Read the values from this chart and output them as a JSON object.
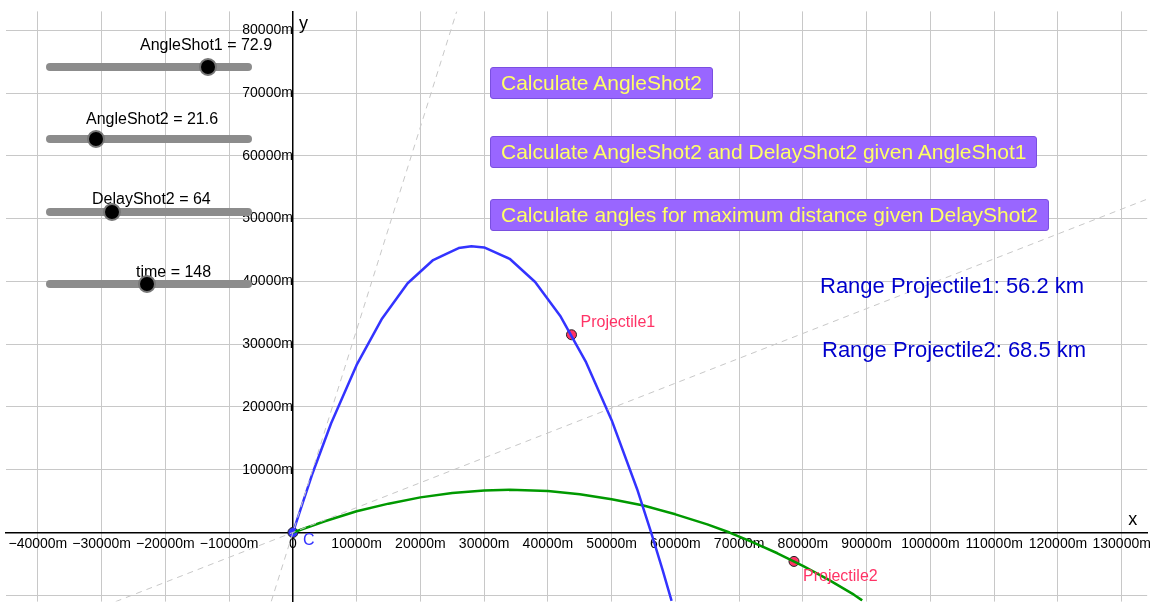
{
  "chart_data": {
    "type": "line",
    "xlabel": "x",
    "ylabel": "y",
    "xlim": [
      -45000,
      134000
    ],
    "ylim": [
      -11000,
      83000
    ],
    "xticks": [
      {
        "value": -40000,
        "label": "−40000m"
      },
      {
        "value": -30000,
        "label": "−30000m"
      },
      {
        "value": -20000,
        "label": "−20000m"
      },
      {
        "value": -10000,
        "label": "−10000m"
      },
      {
        "value": 0,
        "label": "0"
      },
      {
        "value": 10000,
        "label": "10000m"
      },
      {
        "value": 20000,
        "label": "20000m"
      },
      {
        "value": 30000,
        "label": "30000m"
      },
      {
        "value": 40000,
        "label": "40000m"
      },
      {
        "value": 50000,
        "label": "50000m"
      },
      {
        "value": 60000,
        "label": "60000m"
      },
      {
        "value": 70000,
        "label": "70000m"
      },
      {
        "value": 80000,
        "label": "80000m"
      },
      {
        "value": 90000,
        "label": "90000m"
      },
      {
        "value": 100000,
        "label": "100000m"
      },
      {
        "value": 110000,
        "label": "110000m"
      },
      {
        "value": 120000,
        "label": "120000m"
      },
      {
        "value": 130000,
        "label": "130000m"
      }
    ],
    "yticks": [
      {
        "value": -10000,
        "label": null
      },
      {
        "value": 0,
        "label": null
      },
      {
        "value": 10000,
        "label": "10000m"
      },
      {
        "value": 20000,
        "label": "20000m"
      },
      {
        "value": 30000,
        "label": "30000m"
      },
      {
        "value": 40000,
        "label": "40000m"
      },
      {
        "value": 50000,
        "label": "50000m"
      },
      {
        "value": 60000,
        "label": "60000m"
      },
      {
        "value": 70000,
        "label": "70000m"
      },
      {
        "value": 80000,
        "label": "80000m"
      }
    ],
    "grid": true,
    "legend": false,
    "marker": "none",
    "series": [
      {
        "type": "line",
        "color": "#c8c8c8",
        "line_style": "dashed",
        "x": [
          -3400,
          25700
        ],
        "values": [
          -11000,
          83000
        ]
      },
      {
        "type": "line",
        "color": "#c8c8c8",
        "line_style": "dashed",
        "x": [
          -27800,
          134000
        ],
        "values": [
          -11000,
          53100
        ]
      },
      {
        "type": "line",
        "color": "#3333ff",
        "x": [
          0,
          3000,
          6000,
          10000,
          14000,
          18000,
          22000,
          26000,
          28000,
          30000,
          34000,
          38000,
          42000,
          46000,
          50000,
          54000,
          56200,
          58000,
          59400
        ],
        "values": [
          0,
          9200,
          17400,
          26700,
          34100,
          39700,
          43400,
          45300,
          45600,
          45400,
          43600,
          39900,
          34400,
          27100,
          17900,
          6900,
          0,
          -6000,
          -10900
        ]
      },
      {
        "type": "line",
        "color": "#009900",
        "x": [
          0,
          5000,
          10000,
          15000,
          20000,
          25000,
          30000,
          34000,
          40000,
          45000,
          50000,
          55000,
          60000,
          65000,
          68500,
          72000,
          76000,
          80000,
          84000,
          88000,
          89300
        ],
        "values": [
          0,
          1800,
          3400,
          4600,
          5600,
          6300,
          6700,
          6800,
          6600,
          6100,
          5300,
          4300,
          2900,
          1300,
          0,
          -1500,
          -3300,
          -5300,
          -7500,
          -9900,
          -10800
        ]
      },
      {
        "type": "scatter",
        "name": "C",
        "color": "#3333ff",
        "marker": "circle",
        "x": [
          0
        ],
        "values": [
          0
        ]
      },
      {
        "type": "scatter",
        "name": "Projectile1",
        "color": "#ff3366",
        "marker": "circle",
        "x": [
          43700
        ],
        "values": [
          31500
        ]
      },
      {
        "type": "scatter",
        "name": "Projectile2",
        "color": "#ff3366",
        "marker": "circle",
        "x": [
          78600
        ],
        "values": [
          -4600
        ]
      }
    ],
    "annotations": [
      "AngleShot1 = 72.9",
      "AngleShot2 = 21.6",
      "DelayShot2 = 64",
      "time = 148",
      "Calculate AngleShot2",
      "Calculate AngleShot2 and DelayShot2 given AngleShot1",
      "Calculate angles for maximum distance given DelayShot2",
      "Range Projectile1:  56.2 km",
      "Range Projectile2: 68.5 km"
    ]
  }
}
